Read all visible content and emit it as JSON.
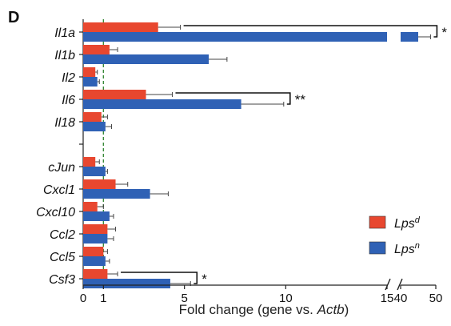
{
  "panel_label": "D",
  "chart_data": {
    "type": "bar",
    "orientation": "horizontal",
    "xlabel": {
      "prefix": "Fold change (gene vs. ",
      "italic": "Actb",
      "suffix": ")"
    },
    "x_axis_break": {
      "from": 15,
      "to": 40
    },
    "xticks": [
      {
        "value": 0,
        "label": "0"
      },
      {
        "value": 1,
        "label": "1"
      },
      {
        "value": 5,
        "label": "5"
      },
      {
        "value": 10,
        "label": "10"
      },
      {
        "value": 15,
        "label": "15"
      },
      {
        "value": 40,
        "label": "40"
      },
      {
        "value": 50,
        "label": "50"
      }
    ],
    "reference_line": {
      "value": 1,
      "style": "dashed",
      "color": "#3a8a3a"
    },
    "categories": [
      "Il1a",
      "Il1b",
      "Il2",
      "Il6",
      "Il18",
      "",
      "cJun",
      "Cxcl1",
      "Cxcl10",
      "Ccl2",
      "Ccl5",
      "Csf3"
    ],
    "series": [
      {
        "name": "Lps",
        "superscript": "d",
        "color": "#e8472f",
        "values": [
          3.7,
          1.3,
          0.6,
          3.1,
          0.9,
          null,
          0.6,
          1.6,
          0.7,
          1.2,
          1.0,
          1.2
        ],
        "errors": [
          1.1,
          0.4,
          0.1,
          1.3,
          0.3,
          null,
          0.2,
          0.6,
          0.3,
          0.4,
          0.2,
          0.5
        ]
      },
      {
        "name": "Lps",
        "superscript": "n",
        "color": "#2f61b5",
        "values": [
          45.0,
          6.2,
          0.7,
          7.8,
          1.1,
          null,
          1.1,
          3.3,
          1.3,
          1.2,
          1.1,
          4.3
        ],
        "errors": [
          3.5,
          0.9,
          0.1,
          2.1,
          0.3,
          null,
          0.1,
          0.9,
          0.2,
          0.3,
          0.2,
          1.0
        ]
      }
    ],
    "significance": [
      {
        "category": "Il1a",
        "label": "*"
      },
      {
        "category": "Il6",
        "label": "**"
      },
      {
        "category": "Csf3",
        "label": "*"
      }
    ],
    "legend_position": "bottom-right"
  }
}
